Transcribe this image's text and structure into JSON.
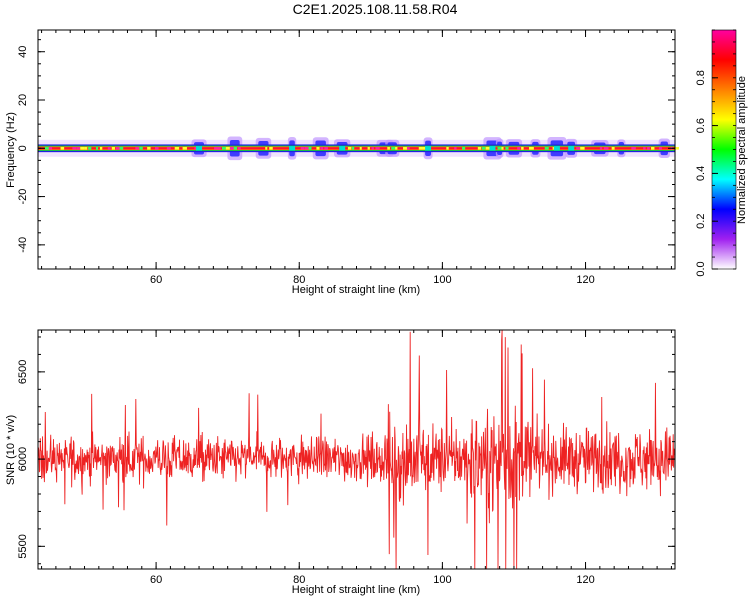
{
  "title": "C2E1.2025.108.11.58.R04",
  "colors": {
    "snr_line": "#ee2222",
    "axis": "#000000",
    "background": "#ffffff"
  },
  "chart_data": [
    {
      "type": "heatmap",
      "xlabel": "Height of straight line (km)",
      "ylabel": "Frequency (Hz)",
      "xlim": [
        43.5,
        132.5
      ],
      "ylim": [
        -50,
        49
      ],
      "x_ticks": [
        60,
        80,
        100,
        120
      ],
      "y_ticks": [
        40,
        20,
        0,
        -20,
        -40
      ],
      "grid": false,
      "colorbar": {
        "label": "Normalized spectral amplitude",
        "range": [
          0,
          1
        ],
        "ticks": [
          "0.0",
          "0.2",
          "0.4",
          "0.6",
          "0.8"
        ],
        "colormap": [
          "#ffffff",
          "#a020f0",
          "#0000ff",
          "#00ffff",
          "#00ff00",
          "#ffff00",
          "#ff8000",
          "#ff0000",
          "#ff00a0"
        ]
      },
      "band": {
        "center_frequency": 0,
        "strong_halfwidth_hz": 0.8,
        "halo_halfwidth_hz": 3.5,
        "peak_amplitude": 1.0
      },
      "disturbed_heights_km": [
        66,
        71,
        75,
        79,
        83,
        86,
        92,
        93,
        98,
        107,
        108,
        110,
        113,
        116,
        118,
        122,
        125,
        131
      ]
    },
    {
      "type": "line",
      "xlabel": "Height of straight line (km)",
      "ylabel": "SNR (10 * v/v)",
      "xlim": [
        43.5,
        132.5
      ],
      "ylim": [
        5370,
        6740
      ],
      "x_ticks": [
        60,
        80,
        100,
        120
      ],
      "y_ticks": [
        6500,
        6000,
        5500
      ],
      "grid": false,
      "series": [
        {
          "mean": 6000,
          "segments": [
            {
              "from_km": 43.5,
              "to_km": 92,
              "amplitude": 150
            },
            {
              "from_km": 92,
              "to_km": 97,
              "amplitude": 280
            },
            {
              "from_km": 97,
              "to_km": 104,
              "amplitude": 220
            },
            {
              "from_km": 104,
              "to_km": 112,
              "amplitude": 340
            },
            {
              "from_km": 112,
              "to_km": 132.5,
              "amplitude": 210
            }
          ],
          "spikes": [
            {
              "x": 95.5,
              "y": 6730
            },
            {
              "x": 98.0,
              "y": 5450
            },
            {
              "x": 108.3,
              "y": 6680
            },
            {
              "x": 110.0,
              "y": 5380
            },
            {
              "x": 110.4,
              "y": 5370
            },
            {
              "x": 109.2,
              "y": 6640
            },
            {
              "x": 93.2,
              "y": 5550
            }
          ]
        }
      ]
    }
  ]
}
